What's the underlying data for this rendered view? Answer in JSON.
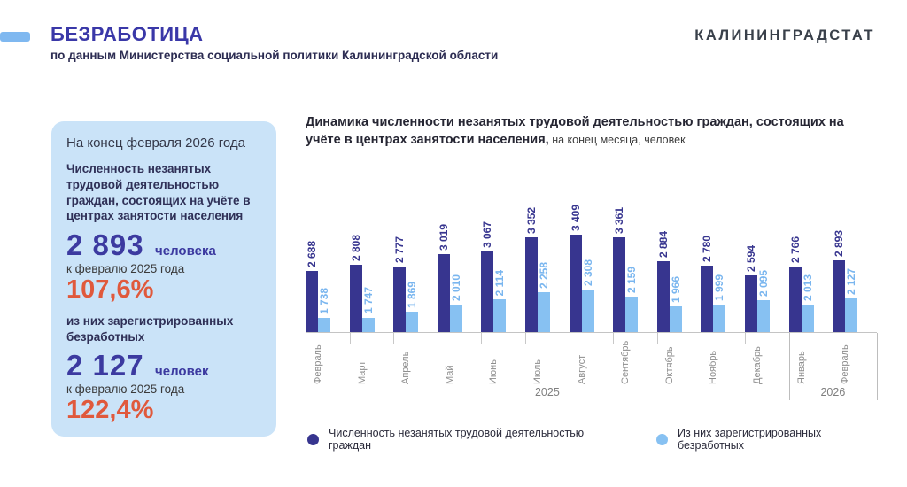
{
  "header": {
    "title": "БЕЗРАБОТИЦА",
    "subtitle": "по данным Министерства социальной политики Калининградской области",
    "brand": "КАЛИНИНГРАДСТАТ"
  },
  "panel": {
    "period": "На конец февраля 2026 года",
    "metric1": {
      "label": "Численность незанятых трудовой деятельностью граждан, состоящих на учёте в центрах занятости населения",
      "value": "2 893",
      "unit": "человека",
      "compare_label": "к февралю 2025 года",
      "percent": "107,6%"
    },
    "metric2": {
      "label": "из них зарегистрированных безработных",
      "value": "2 127",
      "unit": "человек",
      "compare_label": "к февралю 2025 года",
      "percent": "122,4%"
    }
  },
  "chart": {
    "title_bold": "Динамика численности незанятых трудовой деятельностью граждан, состоящих на учёте в центрах занятости населения,",
    "title_suffix": " на конец месяца, человек"
  },
  "chart_data": {
    "type": "bar",
    "categories": [
      "Февраль",
      "Март",
      "Апрель",
      "Май",
      "Июнь",
      "Июль",
      "Август",
      "Сентябрь",
      "Октябрь",
      "Ноябрь",
      "Декабрь",
      "Январь",
      "Февраль"
    ],
    "year_groups": [
      {
        "label": "2025",
        "months": 11
      },
      {
        "label": "2026",
        "months": 2
      }
    ],
    "series": [
      {
        "name": "Численность незанятых трудовой деятельностью граждан",
        "color": "#37358F",
        "values": [
          2688,
          2808,
          2777,
          3019,
          3067,
          3352,
          3409,
          3361,
          2884,
          2780,
          2594,
          2766,
          2893
        ]
      },
      {
        "name": "Из них зарегистрированных безработных",
        "color": "#87C1F2",
        "values": [
          1738,
          1747,
          1869,
          2010,
          2114,
          2258,
          2308,
          2159,
          1966,
          1999,
          2095,
          2013,
          2127
        ]
      }
    ],
    "value_label_format": "space thousands separator, rotated 90°",
    "grid": false,
    "legend_position": "bottom",
    "ylim_visual_baseline": 1454
  },
  "colors": {
    "accent_dash": "#7FB8F0",
    "title_blue": "#3A38A8",
    "panel_bg": "#CAE3F8",
    "big_value_blue": "#3C3AA0",
    "percent_red": "#E0593C",
    "dark_bar": "#37358F",
    "light_bar": "#87C1F2",
    "month_gray": "#8E8E8E"
  }
}
